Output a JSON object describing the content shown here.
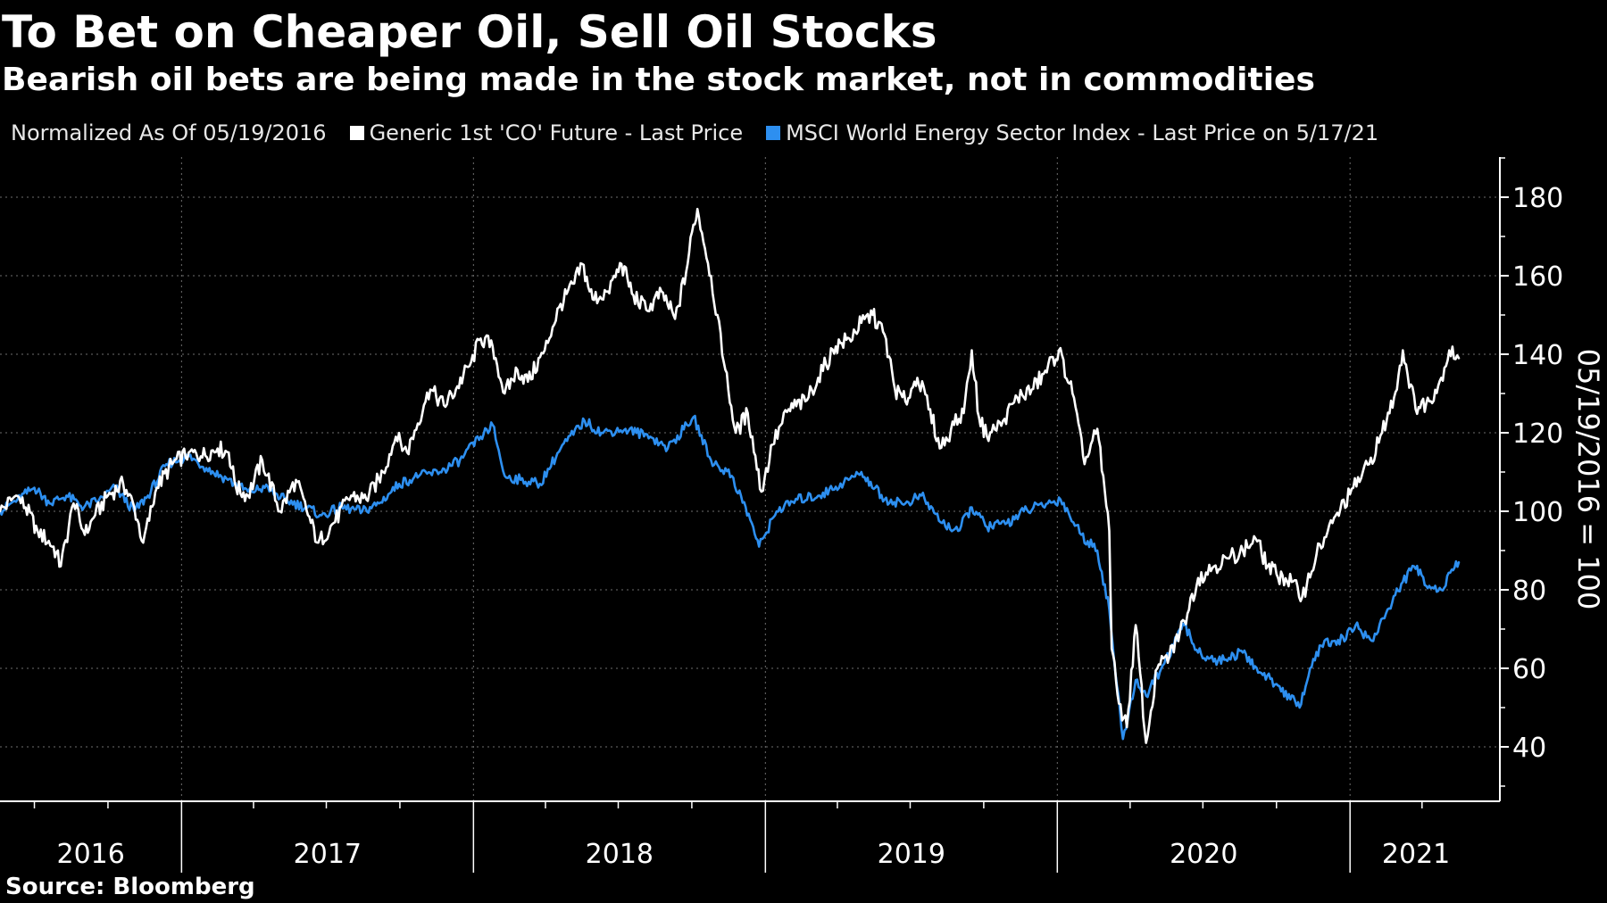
{
  "header": {
    "title": "To Bet on Cheaper Oil, Sell Oil Stocks",
    "subtitle": "Bearish oil bets are being made in the stock market, not in commodities"
  },
  "footer": {
    "source": "Source: Bloomberg"
  },
  "chart_data": {
    "type": "line",
    "legend_note": "Normalized As Of 05/19/2016",
    "ylabel": "05/19/2016 = 100",
    "ylim": [
      26,
      188
    ],
    "yticks": [
      40,
      60,
      80,
      100,
      120,
      140,
      160,
      180
    ],
    "xlim": [
      "2016-05-19",
      "2021-06-15"
    ],
    "year_labels": [
      "2016",
      "2017",
      "2018",
      "2019",
      "2020",
      "2021"
    ],
    "grid": "vertical-dotted-at-year-boundaries",
    "legend_position": "top-left",
    "y_axis_position": "right",
    "series": [
      {
        "name": "Generic 1st 'CO' Future - Last Price",
        "color": "#ffffff",
        "points": [
          [
            "2016-05-19",
            100
          ],
          [
            "2016-06-08",
            104
          ],
          [
            "2016-06-20",
            101
          ],
          [
            "2016-07-05",
            95
          ],
          [
            "2016-07-25",
            91
          ],
          [
            "2016-08-03",
            86
          ],
          [
            "2016-08-19",
            102
          ],
          [
            "2016-09-02",
            94
          ],
          [
            "2016-09-15",
            99
          ],
          [
            "2016-10-01",
            104
          ],
          [
            "2016-10-20",
            107
          ],
          [
            "2016-11-03",
            101
          ],
          [
            "2016-11-14",
            92
          ],
          [
            "2016-12-01",
            106
          ],
          [
            "2016-12-20",
            112
          ],
          [
            "2017-01-10",
            115
          ],
          [
            "2017-01-25",
            114
          ],
          [
            "2017-02-15",
            116
          ],
          [
            "2017-03-01",
            115
          ],
          [
            "2017-03-10",
            106
          ],
          [
            "2017-03-25",
            104
          ],
          [
            "2017-04-12",
            113
          ],
          [
            "2017-05-04",
            100
          ],
          [
            "2017-05-24",
            108
          ],
          [
            "2017-06-08",
            99
          ],
          [
            "2017-06-21",
            92
          ],
          [
            "2017-07-10",
            97
          ],
          [
            "2017-08-01",
            104
          ],
          [
            "2017-08-20",
            103
          ],
          [
            "2017-09-10",
            110
          ],
          [
            "2017-09-26",
            119
          ],
          [
            "2017-10-10",
            115
          ],
          [
            "2017-10-31",
            127
          ],
          [
            "2017-11-08",
            131
          ],
          [
            "2017-11-25",
            127
          ],
          [
            "2017-12-10",
            131
          ],
          [
            "2017-12-29",
            138
          ],
          [
            "2018-01-10",
            144
          ],
          [
            "2018-01-25",
            142
          ],
          [
            "2018-02-09",
            130
          ],
          [
            "2018-02-25",
            136
          ],
          [
            "2018-03-10",
            133
          ],
          [
            "2018-03-31",
            141
          ],
          [
            "2018-04-18",
            152
          ],
          [
            "2018-05-07",
            158
          ],
          [
            "2018-05-17",
            163
          ],
          [
            "2018-05-30",
            154
          ],
          [
            "2018-06-18",
            156
          ],
          [
            "2018-07-05",
            163
          ],
          [
            "2018-07-20",
            155
          ],
          [
            "2018-08-07",
            151
          ],
          [
            "2018-08-24",
            156
          ],
          [
            "2018-09-10",
            149
          ],
          [
            "2018-09-24",
            161
          ],
          [
            "2018-10-03",
            173
          ],
          [
            "2018-10-08",
            177
          ],
          [
            "2018-10-25",
            160
          ],
          [
            "2018-11-10",
            138
          ],
          [
            "2018-11-25",
            120
          ],
          [
            "2018-12-10",
            125
          ],
          [
            "2018-12-27",
            105
          ],
          [
            "2019-01-10",
            117
          ],
          [
            "2019-01-30",
            126
          ],
          [
            "2019-02-20",
            128
          ],
          [
            "2019-03-08",
            134
          ],
          [
            "2019-03-30",
            142
          ],
          [
            "2019-04-16",
            144
          ],
          [
            "2019-05-01",
            148
          ],
          [
            "2019-05-15",
            150
          ],
          [
            "2019-05-30",
            145
          ],
          [
            "2019-06-12",
            131
          ],
          [
            "2019-06-25",
            128
          ],
          [
            "2019-07-10",
            134
          ],
          [
            "2019-07-26",
            126
          ],
          [
            "2019-08-07",
            116
          ],
          [
            "2019-08-25",
            122
          ],
          [
            "2019-09-06",
            125
          ],
          [
            "2019-09-16",
            141
          ],
          [
            "2019-09-25",
            124
          ],
          [
            "2019-10-05",
            119
          ],
          [
            "2019-10-25",
            123
          ],
          [
            "2019-11-12",
            129
          ],
          [
            "2019-11-30",
            131
          ],
          [
            "2019-12-15",
            135
          ],
          [
            "2020-01-03",
            141
          ],
          [
            "2020-01-20",
            130
          ],
          [
            "2020-02-04",
            112
          ],
          [
            "2020-02-20",
            121
          ],
          [
            "2020-03-06",
            95
          ],
          [
            "2020-03-09",
            65
          ],
          [
            "2020-03-18",
            51
          ],
          [
            "2020-03-28",
            45
          ],
          [
            "2020-04-08",
            71
          ],
          [
            "2020-04-21",
            41
          ],
          [
            "2020-05-05",
            60
          ],
          [
            "2020-05-20",
            63
          ],
          [
            "2020-06-08",
            72
          ],
          [
            "2020-06-25",
            83
          ],
          [
            "2020-07-15",
            86
          ],
          [
            "2020-08-01",
            88
          ],
          [
            "2020-08-20",
            90
          ],
          [
            "2020-09-05",
            93
          ],
          [
            "2020-09-20",
            86
          ],
          [
            "2020-10-01",
            84
          ],
          [
            "2020-10-20",
            82
          ],
          [
            "2020-11-02",
            78
          ],
          [
            "2020-11-20",
            89
          ],
          [
            "2020-12-10",
            97
          ],
          [
            "2021-01-05",
            106
          ],
          [
            "2021-01-25",
            112
          ],
          [
            "2021-02-10",
            120
          ],
          [
            "2021-02-25",
            129
          ],
          [
            "2021-03-08",
            141
          ],
          [
            "2021-03-24",
            126
          ],
          [
            "2021-04-10",
            128
          ],
          [
            "2021-04-25",
            134
          ],
          [
            "2021-05-05",
            141
          ],
          [
            "2021-05-17",
            139
          ]
        ]
      },
      {
        "name": "MSCI World Energy Sector Index - Last Price on 5/17/21",
        "color": "#2d8ff0",
        "points": [
          [
            "2016-05-19",
            100
          ],
          [
            "2016-06-10",
            103
          ],
          [
            "2016-07-01",
            106
          ],
          [
            "2016-07-20",
            102
          ],
          [
            "2016-08-10",
            104
          ],
          [
            "2016-09-01",
            101
          ],
          [
            "2016-09-20",
            103
          ],
          [
            "2016-10-10",
            106
          ],
          [
            "2016-11-03",
            100
          ],
          [
            "2016-11-20",
            104
          ],
          [
            "2016-12-13",
            112
          ],
          [
            "2017-01-10",
            114
          ],
          [
            "2017-02-01",
            111
          ],
          [
            "2017-02-28",
            108
          ],
          [
            "2017-03-25",
            105
          ],
          [
            "2017-04-15",
            106
          ],
          [
            "2017-05-10",
            103
          ],
          [
            "2017-06-05",
            101
          ],
          [
            "2017-06-25",
            99
          ],
          [
            "2017-07-20",
            101
          ],
          [
            "2017-08-15",
            100
          ],
          [
            "2017-09-05",
            102
          ],
          [
            "2017-09-30",
            107
          ],
          [
            "2017-10-25",
            109
          ],
          [
            "2017-11-20",
            110
          ],
          [
            "2017-12-15",
            113
          ],
          [
            "2018-01-10",
            119
          ],
          [
            "2018-01-25",
            122
          ],
          [
            "2018-02-09",
            109
          ],
          [
            "2018-03-01",
            108
          ],
          [
            "2018-03-25",
            107
          ],
          [
            "2018-04-20",
            116
          ],
          [
            "2018-05-20",
            123
          ],
          [
            "2018-06-10",
            120
          ],
          [
            "2018-07-10",
            121
          ],
          [
            "2018-08-10",
            119
          ],
          [
            "2018-09-01",
            116
          ],
          [
            "2018-10-03",
            124
          ],
          [
            "2018-10-25",
            113
          ],
          [
            "2018-11-20",
            109
          ],
          [
            "2018-12-15",
            97
          ],
          [
            "2018-12-24",
            91
          ],
          [
            "2019-01-15",
            100
          ],
          [
            "2019-02-10",
            103
          ],
          [
            "2019-03-10",
            104
          ],
          [
            "2019-04-15",
            108
          ],
          [
            "2019-05-01",
            110
          ],
          [
            "2019-05-30",
            103
          ],
          [
            "2019-06-25",
            102
          ],
          [
            "2019-07-15",
            104
          ],
          [
            "2019-08-10",
            97
          ],
          [
            "2019-08-30",
            95
          ],
          [
            "2019-09-16",
            101
          ],
          [
            "2019-10-05",
            96
          ],
          [
            "2019-10-30",
            97
          ],
          [
            "2019-11-20",
            100
          ],
          [
            "2019-12-20",
            102
          ],
          [
            "2020-01-05",
            103
          ],
          [
            "2020-01-31",
            94
          ],
          [
            "2020-02-20",
            90
          ],
          [
            "2020-03-06",
            75
          ],
          [
            "2020-03-12",
            62
          ],
          [
            "2020-03-23",
            42
          ],
          [
            "2020-04-08",
            57
          ],
          [
            "2020-04-21",
            53
          ],
          [
            "2020-05-10",
            60
          ],
          [
            "2020-06-08",
            71
          ],
          [
            "2020-06-25",
            64
          ],
          [
            "2020-07-20",
            62
          ],
          [
            "2020-08-20",
            64
          ],
          [
            "2020-09-10",
            59
          ],
          [
            "2020-10-01",
            56
          ],
          [
            "2020-10-30",
            50
          ],
          [
            "2020-11-12",
            60
          ],
          [
            "2020-11-30",
            67
          ],
          [
            "2020-12-15",
            66
          ],
          [
            "2021-01-08",
            71
          ],
          [
            "2021-01-28",
            67
          ],
          [
            "2021-02-15",
            74
          ],
          [
            "2021-03-08",
            82
          ],
          [
            "2021-03-22",
            86
          ],
          [
            "2021-04-10",
            81
          ],
          [
            "2021-04-25",
            80
          ],
          [
            "2021-05-10",
            85
          ],
          [
            "2021-05-17",
            87
          ]
        ]
      }
    ]
  }
}
